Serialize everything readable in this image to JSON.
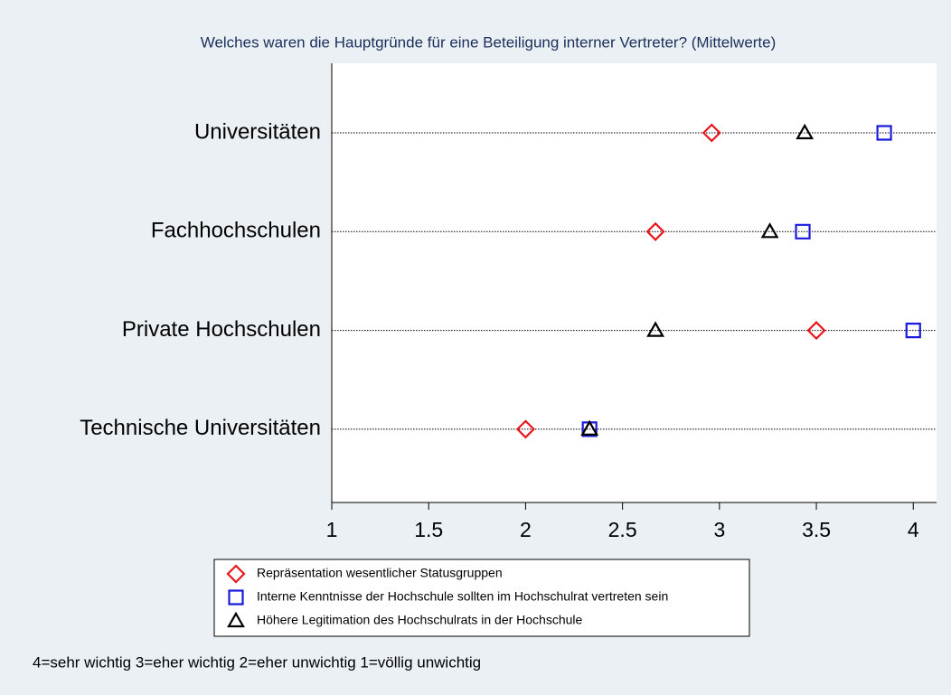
{
  "chart_data": {
    "type": "dot",
    "title": "Welches waren die Hauptgründe für eine Beteiligung interner Vertreter? (Mittelwerte)",
    "categories": [
      "Universitäten",
      "Fachhochschulen",
      "Private Hochschulen",
      "Technische Universitäten"
    ],
    "series": [
      {
        "name": "Repräsentation wesentlicher Statusgruppen",
        "color": "#e8161b",
        "marker": "diamond",
        "values": [
          2.96,
          2.67,
          3.5,
          2.0
        ]
      },
      {
        "name": "Interne Kenntnisse der Hochschule sollten im Hochschulrat vertreten sein",
        "color": "#1a1adc",
        "marker": "square",
        "values": [
          3.85,
          3.43,
          4.0,
          2.33
        ]
      },
      {
        "name": "Höhere Legitimation des Hochschulrats in der Hochschule",
        "color": "#000000",
        "marker": "triangle",
        "values": [
          3.44,
          3.26,
          2.67,
          2.33
        ]
      }
    ],
    "xlim": [
      1,
      4.12
    ],
    "xticks": [
      1,
      1.5,
      2,
      2.5,
      3,
      3.5,
      4
    ],
    "note": "4=sehr wichtig 3=eher wichtig 2=eher unwichtig 1=völlig unwichtig"
  }
}
